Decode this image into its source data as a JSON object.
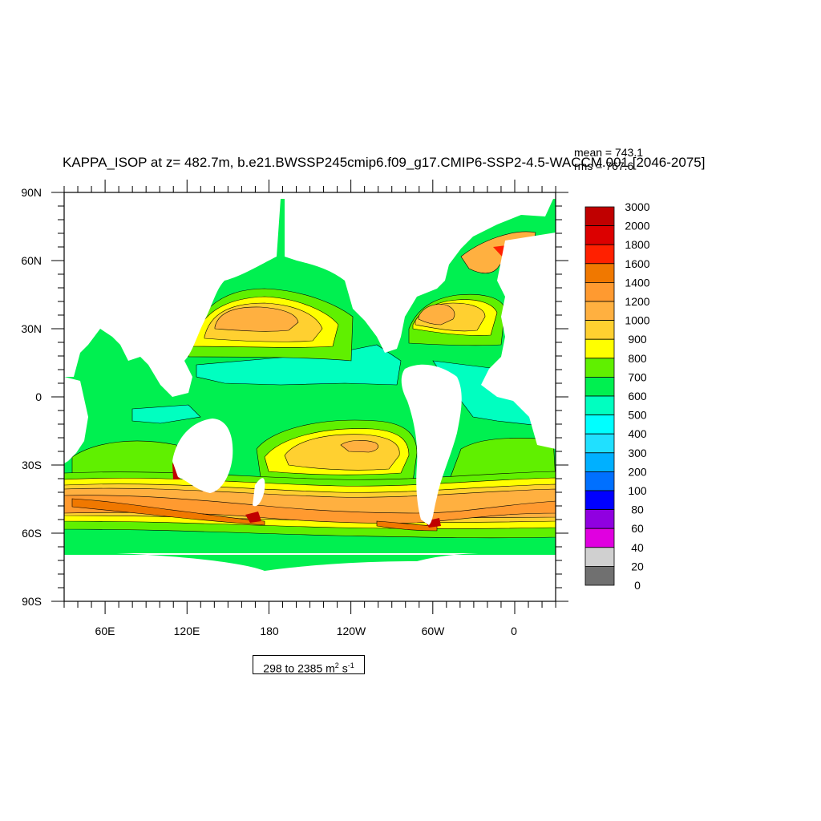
{
  "title": "KAPPA_ISOP at z= 482.7m, b.e21.BWSSP245cmip6.f09_g17.CMIP6-SSP2-4.5-WACCM.001 [2046-2075]",
  "stats": {
    "mean": "mean = 743.1",
    "rms": "rms = 767.6"
  },
  "lat_labels": [
    "90N",
    "60N",
    "30N",
    "0",
    "30S",
    "60S",
    "90S"
  ],
  "lon_labels": [
    "60E",
    "120E",
    "180",
    "120W",
    "60W",
    "0"
  ],
  "colorbar": {
    "labels": [
      "3000",
      "2000",
      "1800",
      "1600",
      "1400",
      "1200",
      "1000",
      "900",
      "800",
      "700",
      "600",
      "500",
      "400",
      "300",
      "200",
      "100",
      "80",
      "60",
      "40",
      "20",
      "0"
    ],
    "colors": [
      "#c00000",
      "#dc0000",
      "#ff2000",
      "#f07800",
      "#ff9a30",
      "#ffb040",
      "#ffd030",
      "#ffff00",
      "#60f000",
      "#00f050",
      "#00ffc0",
      "#00ffff",
      "#20e0ff",
      "#00b0ff",
      "#0070ff",
      "#0000ff",
      "#9000e0",
      "#e000e0",
      "#d0d0d0",
      "#707070"
    ]
  },
  "range": {
    "text": "298 to 2385 m",
    "exp1": "2",
    "mid": " s",
    "exp2": "-1"
  },
  "map_colors": {
    "land": "#ffffff",
    "c600": "#00f050",
    "c700": "#60f000",
    "c800": "#ffff00",
    "c900": "#ffd030",
    "c1000": "#ffb040",
    "c1200": "#ff9a30",
    "c1400": "#f07800",
    "c1600": "#ff2000",
    "c2000": "#c00000",
    "c500": "#00ffc0",
    "c400": "#00ffff"
  }
}
